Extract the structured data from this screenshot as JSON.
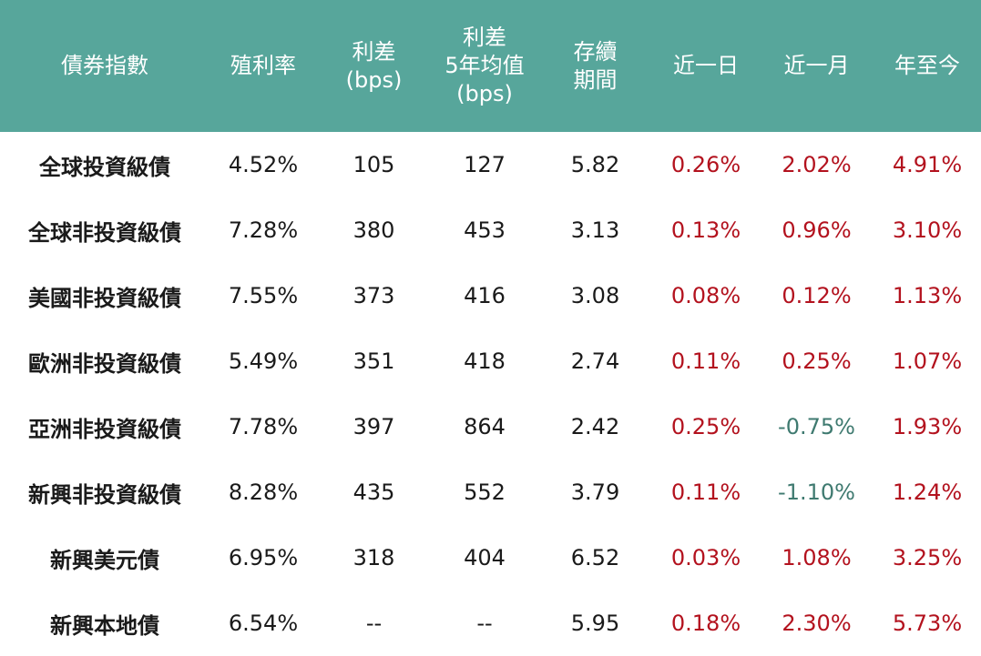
{
  "table": {
    "headers": [
      "債券指數",
      "殖利率",
      "利差\n(bps)",
      "利差\n5年均值\n(bps)",
      "存續\n期間",
      "近一日",
      "近一月",
      "年至今"
    ],
    "rows": [
      {
        "name": "全球投資級債",
        "yield": "4.52%",
        "spread": "105",
        "spread_5y": "127",
        "duration": "5.82",
        "d1": "0.26%",
        "m1": "2.02%",
        "ytd": "4.91%"
      },
      {
        "name": "全球非投資級債",
        "yield": "7.28%",
        "spread": "380",
        "spread_5y": "453",
        "duration": "3.13",
        "d1": "0.13%",
        "m1": "0.96%",
        "ytd": "3.10%"
      },
      {
        "name": "美國非投資級債",
        "yield": "7.55%",
        "spread": "373",
        "spread_5y": "416",
        "duration": "3.08",
        "d1": "0.08%",
        "m1": "0.12%",
        "ytd": "1.13%"
      },
      {
        "name": "歐洲非投資級債",
        "yield": "5.49%",
        "spread": "351",
        "spread_5y": "418",
        "duration": "2.74",
        "d1": "0.11%",
        "m1": "0.25%",
        "ytd": "1.07%"
      },
      {
        "name": "亞洲非投資級債",
        "yield": "7.78%",
        "spread": "397",
        "spread_5y": "864",
        "duration": "2.42",
        "d1": "0.25%",
        "m1": "-0.75%",
        "ytd": "1.93%"
      },
      {
        "name": "新興非投資級債",
        "yield": "8.28%",
        "spread": "435",
        "spread_5y": "552",
        "duration": "3.79",
        "d1": "0.11%",
        "m1": "-1.10%",
        "ytd": "1.24%"
      },
      {
        "name": "新興美元債",
        "yield": "6.95%",
        "spread": "318",
        "spread_5y": "404",
        "duration": "6.52",
        "d1": "0.03%",
        "m1": "1.08%",
        "ytd": "3.25%"
      },
      {
        "name": "新興本地債",
        "yield": "6.54%",
        "spread": "--",
        "spread_5y": "--",
        "duration": "5.95",
        "d1": "0.18%",
        "m1": "2.30%",
        "ytd": "5.73%"
      }
    ]
  },
  "colors": {
    "header_bg": "#57a69b",
    "positive": "#b3121e",
    "negative": "#3f7a70"
  }
}
